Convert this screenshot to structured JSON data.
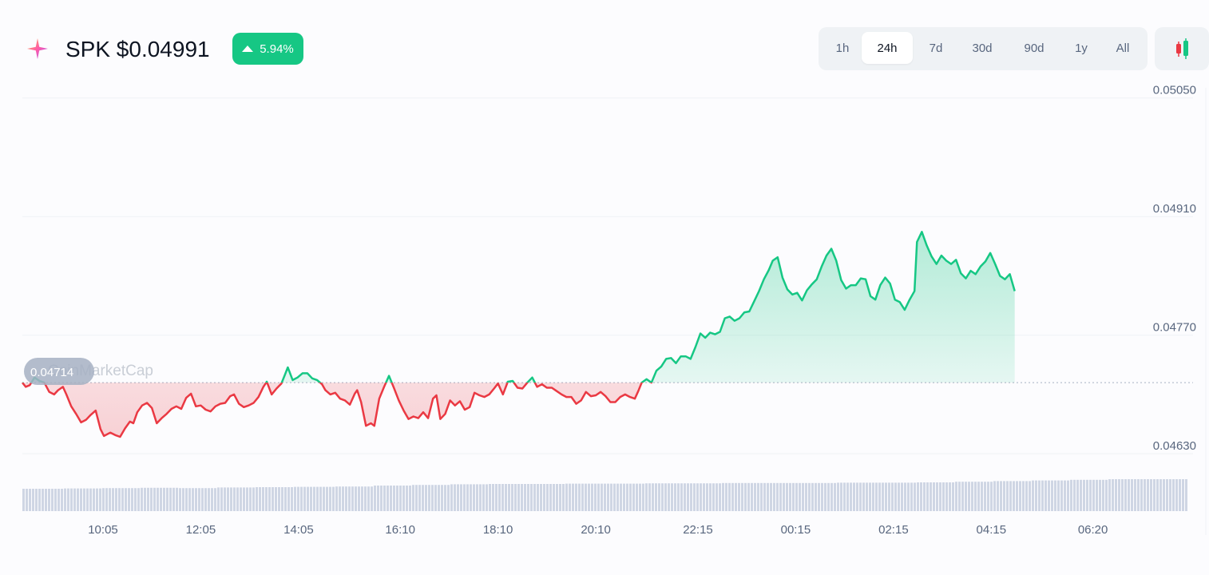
{
  "header": {
    "title": "SPK $0.04991",
    "change_label": "5.94%",
    "change_color": "#16c784",
    "logo_icon": "spark-star-icon"
  },
  "range_buttons": [
    "1h",
    "24h",
    "7d",
    "30d",
    "90d",
    "1y",
    "All"
  ],
  "active_range": "24h",
  "chart_type_toggle_icon": "candlestick-icon",
  "colors": {
    "up": "#16c784",
    "down": "#ea3943",
    "grid": "#eff2f5",
    "volume": "#cfd6e4"
  },
  "chart_data": {
    "type": "line",
    "title": "SPK $0.04991",
    "open_value": "0.04714",
    "watermark": "CoinMarketCap",
    "xlabel": "",
    "ylabel": "",
    "ylim": [
      0.046,
      0.05062
    ],
    "yticks": [
      "0.05050",
      "0.04910",
      "0.04770",
      "0.04630"
    ],
    "xticks": [
      {
        "label": "10:05",
        "t": 9.9
      },
      {
        "label": "12:05",
        "t": 11.9
      },
      {
        "label": "14:05",
        "t": 13.9
      },
      {
        "label": "16:10",
        "t": 15.98
      },
      {
        "label": "18:10",
        "t": 17.98
      },
      {
        "label": "20:10",
        "t": 19.98
      },
      {
        "label": "22:15",
        "t": 22.07
      },
      {
        "label": "00:15",
        "t": 24.07
      },
      {
        "label": "02:15",
        "t": 26.07
      },
      {
        "label": "04:15",
        "t": 28.07
      },
      {
        "label": "06:20",
        "t": 30.15
      }
    ],
    "baseline": 0.04714,
    "grid": true,
    "series": [
      {
        "color_above": "#16c784",
        "color_below": "#ea3943",
        "points": [
          [
            8.25,
            0.04714
          ],
          [
            8.32,
            0.04709
          ],
          [
            8.4,
            0.04711
          ],
          [
            8.5,
            0.0472
          ],
          [
            8.6,
            0.04716
          ],
          [
            8.7,
            0.04714
          ],
          [
            8.8,
            0.04703
          ],
          [
            8.9,
            0.047
          ],
          [
            8.98,
            0.04705
          ],
          [
            9.08,
            0.04709
          ],
          [
            9.15,
            0.047
          ],
          [
            9.25,
            0.04686
          ],
          [
            9.35,
            0.04677
          ],
          [
            9.45,
            0.04667
          ],
          [
            9.55,
            0.0467
          ],
          [
            9.65,
            0.04676
          ],
          [
            9.75,
            0.04681
          ],
          [
            9.85,
            0.04659
          ],
          [
            9.92,
            0.04651
          ],
          [
            10.05,
            0.04655
          ],
          [
            10.15,
            0.04652
          ],
          [
            10.25,
            0.0465
          ],
          [
            10.35,
            0.0466
          ],
          [
            10.45,
            0.04668
          ],
          [
            10.52,
            0.04666
          ],
          [
            10.6,
            0.04679
          ],
          [
            10.7,
            0.04687
          ],
          [
            10.8,
            0.0469
          ],
          [
            10.9,
            0.04684
          ],
          [
            11.0,
            0.04666
          ],
          [
            11.1,
            0.04672
          ],
          [
            11.2,
            0.04677
          ],
          [
            11.3,
            0.04683
          ],
          [
            11.4,
            0.04686
          ],
          [
            11.5,
            0.04683
          ],
          [
            11.6,
            0.04696
          ],
          [
            11.7,
            0.04701
          ],
          [
            11.8,
            0.04686
          ],
          [
            11.9,
            0.04687
          ],
          [
            12.0,
            0.04682
          ],
          [
            12.1,
            0.0468
          ],
          [
            12.2,
            0.04686
          ],
          [
            12.3,
            0.04689
          ],
          [
            12.4,
            0.0469
          ],
          [
            12.5,
            0.04698
          ],
          [
            12.58,
            0.047
          ],
          [
            12.68,
            0.04689
          ],
          [
            12.78,
            0.04685
          ],
          [
            12.88,
            0.04687
          ],
          [
            12.98,
            0.0469
          ],
          [
            13.08,
            0.04697
          ],
          [
            13.18,
            0.04709
          ],
          [
            13.25,
            0.04715
          ],
          [
            13.35,
            0.047
          ],
          [
            13.45,
            0.04707
          ],
          [
            13.55,
            0.04713
          ],
          [
            13.62,
            0.04723
          ],
          [
            13.68,
            0.04732
          ],
          [
            13.78,
            0.04717
          ],
          [
            13.88,
            0.0472
          ],
          [
            13.98,
            0.04725
          ],
          [
            14.08,
            0.04725
          ],
          [
            14.18,
            0.04719
          ],
          [
            14.28,
            0.04717
          ],
          [
            14.38,
            0.04712
          ],
          [
            14.45,
            0.04705
          ],
          [
            14.55,
            0.047
          ],
          [
            14.65,
            0.04702
          ],
          [
            14.75,
            0.04695
          ],
          [
            14.85,
            0.04693
          ],
          [
            14.95,
            0.04688
          ],
          [
            15.05,
            0.04701
          ],
          [
            15.1,
            0.04705
          ],
          [
            15.18,
            0.04691
          ],
          [
            15.28,
            0.04663
          ],
          [
            15.38,
            0.04666
          ],
          [
            15.45,
            0.04663
          ],
          [
            15.55,
            0.04695
          ],
          [
            15.65,
            0.04709
          ],
          [
            15.75,
            0.04722
          ],
          [
            15.85,
            0.04708
          ],
          [
            15.95,
            0.04693
          ],
          [
            16.05,
            0.04681
          ],
          [
            16.15,
            0.04671
          ],
          [
            16.25,
            0.04674
          ],
          [
            16.35,
            0.04672
          ],
          [
            16.45,
            0.04679
          ],
          [
            16.55,
            0.04672
          ],
          [
            16.65,
            0.04695
          ],
          [
            16.72,
            0.04699
          ],
          [
            16.8,
            0.04671
          ],
          [
            16.9,
            0.04677
          ],
          [
            17.0,
            0.04693
          ],
          [
            17.1,
            0.04687
          ],
          [
            17.2,
            0.04692
          ],
          [
            17.3,
            0.04682
          ],
          [
            17.4,
            0.04685
          ],
          [
            17.5,
            0.04702
          ],
          [
            17.6,
            0.04699
          ],
          [
            17.7,
            0.04697
          ],
          [
            17.8,
            0.047
          ],
          [
            17.9,
            0.04707
          ],
          [
            17.98,
            0.04713
          ],
          [
            18.08,
            0.047
          ],
          [
            18.18,
            0.04715
          ],
          [
            18.28,
            0.04716
          ],
          [
            18.38,
            0.04708
          ],
          [
            18.48,
            0.04707
          ],
          [
            18.58,
            0.04714
          ],
          [
            18.68,
            0.0472
          ],
          [
            18.78,
            0.04709
          ],
          [
            18.88,
            0.04712
          ],
          [
            18.98,
            0.04708
          ],
          [
            19.08,
            0.04708
          ],
          [
            19.18,
            0.04704
          ],
          [
            19.28,
            0.047
          ],
          [
            19.38,
            0.04697
          ],
          [
            19.48,
            0.04697
          ],
          [
            19.58,
            0.04689
          ],
          [
            19.68,
            0.04693
          ],
          [
            19.78,
            0.04703
          ],
          [
            19.88,
            0.04698
          ],
          [
            19.98,
            0.04699
          ],
          [
            20.08,
            0.04703
          ],
          [
            20.18,
            0.04698
          ],
          [
            20.28,
            0.04691
          ],
          [
            20.38,
            0.04691
          ],
          [
            20.48,
            0.04697
          ],
          [
            20.58,
            0.047
          ],
          [
            20.68,
            0.04697
          ],
          [
            20.78,
            0.04695
          ],
          [
            20.85,
            0.04704
          ],
          [
            20.92,
            0.04714
          ],
          [
            21.02,
            0.04718
          ],
          [
            21.12,
            0.04714
          ],
          [
            21.22,
            0.04728
          ],
          [
            21.32,
            0.04733
          ],
          [
            21.42,
            0.04742
          ],
          [
            21.52,
            0.04743
          ],
          [
            21.62,
            0.04737
          ],
          [
            21.72,
            0.04745
          ],
          [
            21.82,
            0.04745
          ],
          [
            21.92,
            0.04742
          ],
          [
            22.02,
            0.04756
          ],
          [
            22.12,
            0.04772
          ],
          [
            22.22,
            0.04767
          ],
          [
            22.32,
            0.04773
          ],
          [
            22.42,
            0.04771
          ],
          [
            22.52,
            0.04774
          ],
          [
            22.62,
            0.0479
          ],
          [
            22.72,
            0.04792
          ],
          [
            22.82,
            0.04787
          ],
          [
            22.92,
            0.0479
          ],
          [
            23.02,
            0.04797
          ],
          [
            23.12,
            0.04798
          ],
          [
            23.22,
            0.0481
          ],
          [
            23.32,
            0.04822
          ],
          [
            23.42,
            0.04836
          ],
          [
            23.52,
            0.04847
          ],
          [
            23.6,
            0.04858
          ],
          [
            23.7,
            0.04862
          ],
          [
            23.8,
            0.04838
          ],
          [
            23.9,
            0.04824
          ],
          [
            24.0,
            0.04818
          ],
          [
            24.1,
            0.0482
          ],
          [
            24.2,
            0.04811
          ],
          [
            24.3,
            0.04823
          ],
          [
            24.4,
            0.0483
          ],
          [
            24.5,
            0.04836
          ],
          [
            24.6,
            0.04851
          ],
          [
            24.7,
            0.04864
          ],
          [
            24.8,
            0.04872
          ],
          [
            24.9,
            0.04858
          ],
          [
            25.0,
            0.04835
          ],
          [
            25.1,
            0.04825
          ],
          [
            25.2,
            0.04829
          ],
          [
            25.3,
            0.04829
          ],
          [
            25.4,
            0.04837
          ],
          [
            25.5,
            0.04836
          ],
          [
            25.6,
            0.04816
          ],
          [
            25.7,
            0.04812
          ],
          [
            25.8,
            0.04829
          ],
          [
            25.9,
            0.04838
          ],
          [
            26.0,
            0.04831
          ],
          [
            26.1,
            0.04812
          ],
          [
            26.2,
            0.04809
          ],
          [
            26.3,
            0.048
          ],
          [
            26.4,
            0.04812
          ],
          [
            26.5,
            0.04822
          ],
          [
            26.55,
            0.0488
          ],
          [
            26.65,
            0.04892
          ],
          [
            26.75,
            0.04876
          ],
          [
            26.85,
            0.04863
          ],
          [
            26.95,
            0.04854
          ],
          [
            27.05,
            0.04864
          ],
          [
            27.15,
            0.04858
          ],
          [
            27.25,
            0.04854
          ],
          [
            27.35,
            0.04859
          ],
          [
            27.45,
            0.04843
          ],
          [
            27.55,
            0.04837
          ],
          [
            27.65,
            0.04846
          ],
          [
            27.75,
            0.04842
          ],
          [
            27.85,
            0.04851
          ],
          [
            27.95,
            0.04857
          ],
          [
            28.05,
            0.04867
          ],
          [
            28.15,
            0.04854
          ],
          [
            28.25,
            0.0484
          ],
          [
            28.35,
            0.04836
          ],
          [
            28.45,
            0.04842
          ],
          [
            28.55,
            0.04822
          ]
        ]
      }
    ],
    "volume": [
      0.7,
      0.71,
      0.72,
      0.73,
      0.72,
      0.74,
      0.75,
      0.76,
      0.77,
      0.8,
      0.82,
      0.84,
      0.85,
      0.85,
      0.86,
      0.86,
      0.87,
      0.87,
      0.88,
      0.88,
      0.88,
      0.89,
      0.89,
      0.9,
      0.92,
      0.94,
      0.96,
      0.98,
      1.0,
      1.0
    ]
  }
}
